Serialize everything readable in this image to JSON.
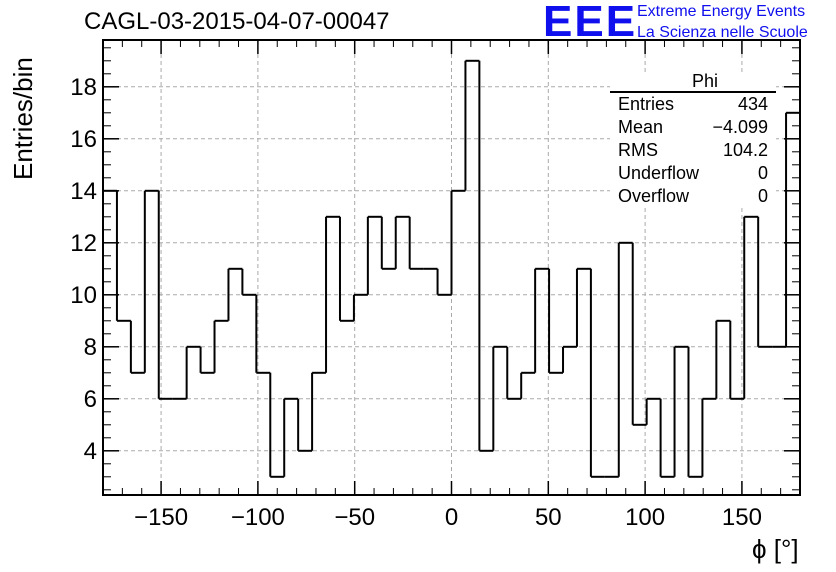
{
  "header": {
    "run_title": "CAGL-03-2015-04-07-00047",
    "logo_text": "EEE",
    "logo_line1": "Extreme Energy Events",
    "logo_line2": "La Scienza nelle Scuole"
  },
  "stats_box": {
    "title": "Phi",
    "rows": [
      {
        "label": "Entries",
        "value": "434"
      },
      {
        "label": "Mean",
        "value": "−4.099"
      },
      {
        "label": "RMS",
        "value": "104.2"
      },
      {
        "label": "Underflow",
        "value": "0"
      },
      {
        "label": "Overflow",
        "value": "0"
      }
    ]
  },
  "colors": {
    "logo": "#1010ee",
    "line": "#000000",
    "grid": "#aaaaaa"
  },
  "chart_data": {
    "type": "histogram",
    "title": "CAGL-03-2015-04-07-00047",
    "xlabel": "ϕ [°]",
    "ylabel": "Entries/bin",
    "xlim": [
      -180,
      180
    ],
    "ylim": [
      2.3,
      19.8
    ],
    "bin_width": 7.2,
    "bin_edges_start": -180,
    "values": [
      14,
      9,
      7,
      14,
      6,
      6,
      8,
      7,
      9,
      11,
      10,
      7,
      3,
      6,
      4,
      7,
      13,
      9,
      10,
      13,
      11,
      13,
      11,
      11,
      10,
      14,
      19,
      4,
      8,
      6,
      7,
      11,
      7,
      8,
      11,
      3,
      3,
      12,
      5,
      6,
      3,
      8,
      3,
      6,
      9,
      6,
      13,
      8,
      8,
      17
    ],
    "xticks": [
      -150,
      -100,
      -50,
      0,
      50,
      100,
      150
    ],
    "xtick_labels": [
      "−150",
      "−100",
      "−50",
      "0",
      "50",
      "100",
      "150"
    ],
    "yticks": [
      4,
      6,
      8,
      10,
      12,
      14,
      16,
      18
    ],
    "ytick_labels": [
      "4",
      "6",
      "8",
      "10",
      "12",
      "14",
      "16",
      "18"
    ],
    "grid": true,
    "legend": "stats box top-right"
  }
}
